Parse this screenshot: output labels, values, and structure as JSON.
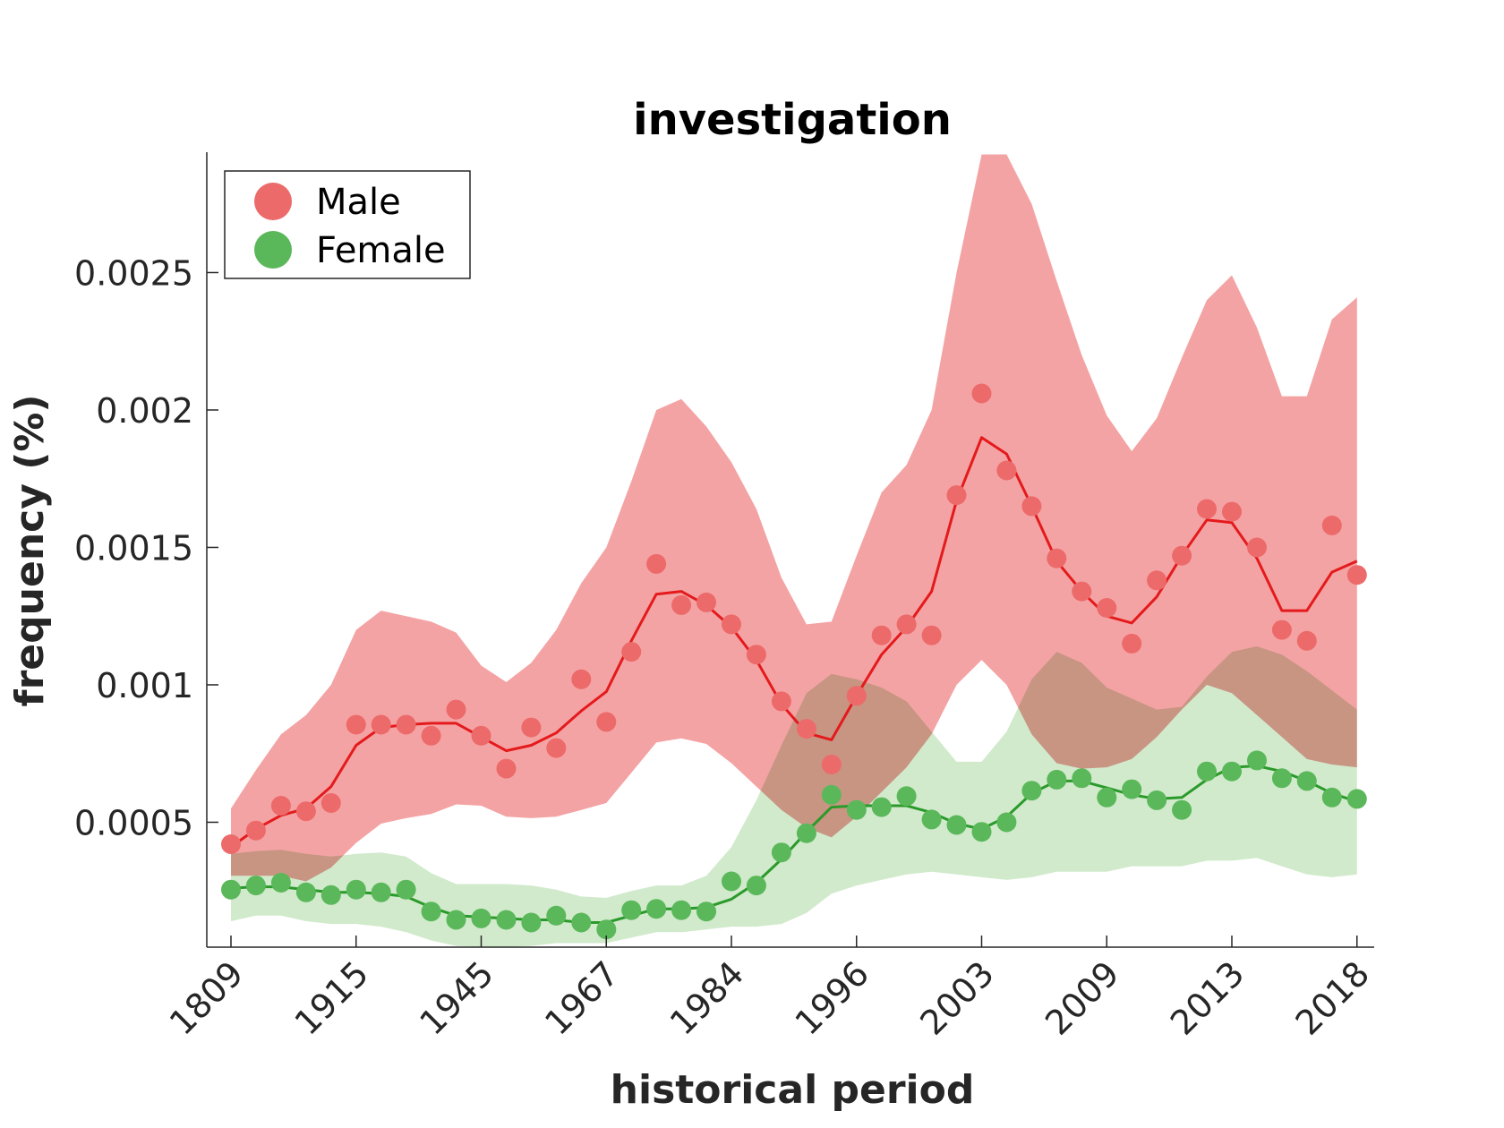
{
  "chart_data": {
    "type": "line",
    "title": "investigation",
    "xlabel": "historical period",
    "ylabel": "frequency (%)",
    "x_tick_labels": [
      "1809",
      "1915",
      "1945",
      "1967",
      "1984",
      "1996",
      "2003",
      "2009",
      "2013",
      "2018"
    ],
    "y_ticks": [
      0.0005,
      0.001,
      0.0015,
      0.002,
      0.0025
    ],
    "y_tick_labels": [
      "0.0005",
      "0.001",
      "0.0015",
      "0.002",
      "0.0025"
    ],
    "ylim": [
      4.55e-05,
      0.00293
    ],
    "n_points": 46,
    "x_tick_index_spacing": 5,
    "legend_position": "top-left",
    "series": [
      {
        "name": "Male",
        "color": "#e41a1c",
        "marker_color": "#ec6a6a",
        "band_color": "#f4a3a4",
        "points": [
          0.00042,
          0.00047,
          0.00056,
          0.00054,
          0.00057,
          0.000855,
          0.000855,
          0.000855,
          0.000815,
          0.00091,
          0.000815,
          0.000695,
          0.000845,
          0.00077,
          0.00102,
          0.000865,
          0.00112,
          0.00144,
          0.00129,
          0.0013,
          0.00122,
          0.00111,
          0.00094,
          0.00084,
          0.00071,
          0.00096,
          0.00118,
          0.00122,
          0.00118,
          0.00169,
          0.00206,
          0.00178,
          0.00165,
          0.00146,
          0.00134,
          0.00128,
          0.00115,
          0.00138,
          0.00147,
          0.00164,
          0.00163,
          0.0015,
          0.0012,
          0.00116,
          0.00158,
          0.0014
        ],
        "smooth": [
          0.00041,
          0.000475,
          0.000525,
          0.00055,
          0.00063,
          0.00078,
          0.000845,
          0.000855,
          0.00086,
          0.00086,
          0.00081,
          0.00076,
          0.00078,
          0.000825,
          0.000905,
          0.000975,
          0.00116,
          0.00133,
          0.00134,
          0.00129,
          0.00121,
          0.00109,
          0.00093,
          0.000825,
          0.0008,
          0.00096,
          0.00111,
          0.00121,
          0.00134,
          0.00167,
          0.0019,
          0.00184,
          0.00165,
          0.00145,
          0.00134,
          0.00125,
          0.001225,
          0.00132,
          0.00147,
          0.0016,
          0.00159,
          0.00146,
          0.00127,
          0.00127,
          0.00141,
          0.00145
        ],
        "band_upper": [
          0.00055,
          0.00069,
          0.00082,
          0.00089,
          0.001,
          0.0012,
          0.00127,
          0.00125,
          0.00123,
          0.00119,
          0.00107,
          0.00101,
          0.00108,
          0.0012,
          0.00137,
          0.0015,
          0.00174,
          0.002,
          0.00204,
          0.00194,
          0.00181,
          0.00164,
          0.00139,
          0.00122,
          0.00123,
          0.00147,
          0.0017,
          0.0018,
          0.002,
          0.0025,
          0.00293,
          0.00293,
          0.00275,
          0.00247,
          0.0022,
          0.00198,
          0.00185,
          0.00197,
          0.00219,
          0.0024,
          0.00249,
          0.0023,
          0.00205,
          0.00205,
          0.00233,
          0.00241
        ],
        "band_lower": [
          0.000305,
          0.000305,
          0.000305,
          0.000285,
          0.000335,
          0.000425,
          0.000495,
          0.000515,
          0.00053,
          0.000565,
          0.00056,
          0.00052,
          0.000515,
          0.00052,
          0.000545,
          0.00057,
          0.00068,
          0.00079,
          0.000805,
          0.000785,
          0.000715,
          0.00063,
          0.000545,
          0.00048,
          0.000445,
          0.00052,
          0.00061,
          0.0007,
          0.00082,
          0.001,
          0.00109,
          0.001,
          0.00082,
          0.000715,
          0.000695,
          0.0007,
          0.00073,
          0.00081,
          0.00091,
          0.001,
          0.00097,
          0.00089,
          0.00081,
          0.00073,
          0.00071,
          0.0007
        ]
      },
      {
        "name": "Female",
        "color": "#2a9a2a",
        "marker_color": "#5ab85a",
        "band_color": "#b2dcaa",
        "points": [
          0.000255,
          0.00027,
          0.00028,
          0.000245,
          0.000235,
          0.000255,
          0.000245,
          0.000255,
          0.000175,
          0.000145,
          0.00015,
          0.000145,
          0.000135,
          0.00016,
          0.000135,
          0.00011,
          0.00018,
          0.000185,
          0.00018,
          0.000175,
          0.000285,
          0.00027,
          0.00039,
          0.00046,
          0.0006,
          0.000545,
          0.000555,
          0.000595,
          0.00051,
          0.00049,
          0.000465,
          0.0005,
          0.000615,
          0.000655,
          0.00066,
          0.00059,
          0.00062,
          0.00058,
          0.000545,
          0.000685,
          0.000685,
          0.000725,
          0.00066,
          0.00065,
          0.00059,
          0.000585
        ],
        "smooth": [
          0.00026,
          0.000265,
          0.000265,
          0.000255,
          0.000245,
          0.000245,
          0.00024,
          0.00023,
          0.00019,
          0.00016,
          0.000155,
          0.00015,
          0.000145,
          0.000145,
          0.000135,
          0.000135,
          0.00016,
          0.000185,
          0.000185,
          0.00019,
          0.00022,
          0.00028,
          0.000365,
          0.000465,
          0.000555,
          0.00056,
          0.00056,
          0.00056,
          0.000535,
          0.000495,
          0.000475,
          0.00052,
          0.000605,
          0.00065,
          0.00065,
          0.000625,
          0.0006,
          0.000585,
          0.00059,
          0.000655,
          0.0007,
          0.000705,
          0.000685,
          0.00065,
          0.000605,
          0.000575
        ],
        "band_upper": [
          0.000385,
          0.000395,
          0.0004,
          0.000385,
          0.000375,
          0.000385,
          0.00039,
          0.000375,
          0.000315,
          0.000275,
          0.000275,
          0.000275,
          0.00027,
          0.000255,
          0.00023,
          0.000225,
          0.00025,
          0.00027,
          0.00027,
          0.000305,
          0.00041,
          0.00058,
          0.00078,
          0.00097,
          0.00104,
          0.00102,
          0.00099,
          0.00094,
          0.00083,
          0.00072,
          0.00072,
          0.00083,
          0.00102,
          0.00112,
          0.00108,
          0.00099,
          0.00095,
          0.00091,
          0.00092,
          0.00103,
          0.00112,
          0.00114,
          0.00111,
          0.00105,
          0.00098,
          0.00091
        ],
        "band_lower": [
          0.00014,
          0.00016,
          0.00016,
          0.00014,
          0.00013,
          0.00013,
          0.00012,
          0.0001,
          7e-05,
          5e-05,
          4.55e-05,
          4.55e-05,
          5e-05,
          6e-05,
          6e-05,
          6e-05,
          8e-05,
          0.0001,
          0.0001,
          0.00011,
          0.00012,
          0.00012,
          0.00013,
          0.00017,
          0.00024,
          0.00027,
          0.00029,
          0.00031,
          0.00032,
          0.00031,
          0.0003,
          0.00029,
          0.0003,
          0.00032,
          0.00032,
          0.00032,
          0.00034,
          0.00034,
          0.00034,
          0.00036,
          0.00036,
          0.00037,
          0.00034,
          0.00031,
          0.0003,
          0.00031
        ]
      }
    ]
  }
}
